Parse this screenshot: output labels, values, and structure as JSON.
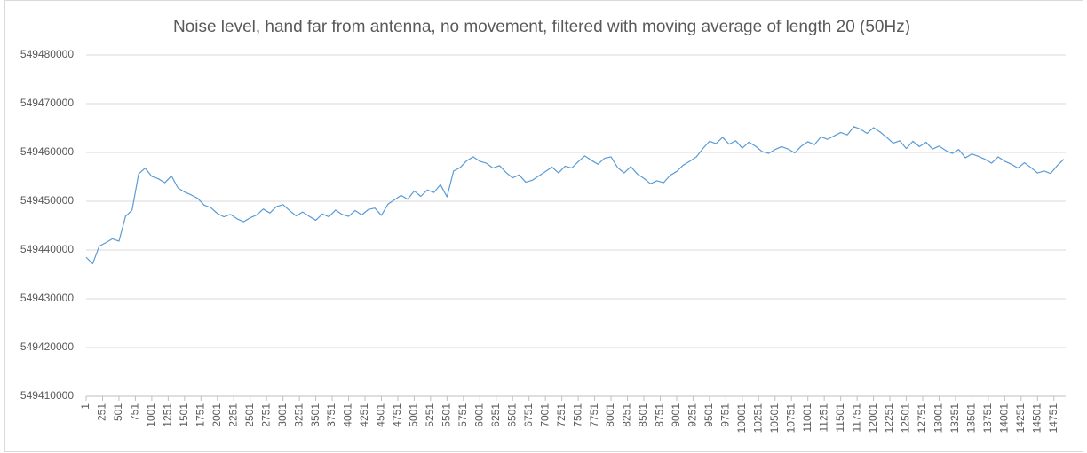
{
  "chart_data": {
    "type": "line",
    "title": "Noise level, hand far from antenna, no movement, filtered with moving average of length 20 (50Hz)",
    "x": [
      1,
      101,
      201,
      301,
      401,
      501,
      601,
      701,
      801,
      901,
      1001,
      1101,
      1201,
      1301,
      1401,
      1501,
      1601,
      1701,
      1801,
      1901,
      2001,
      2101,
      2201,
      2301,
      2401,
      2501,
      2601,
      2701,
      2801,
      2901,
      3001,
      3101,
      3201,
      3301,
      3401,
      3501,
      3601,
      3701,
      3801,
      3901,
      4001,
      4101,
      4201,
      4301,
      4401,
      4501,
      4601,
      4701,
      4801,
      4901,
      5001,
      5101,
      5201,
      5301,
      5401,
      5501,
      5601,
      5701,
      5801,
      5901,
      6001,
      6101,
      6201,
      6301,
      6401,
      6501,
      6601,
      6701,
      6801,
      6901,
      7001,
      7101,
      7201,
      7301,
      7401,
      7501,
      7601,
      7701,
      7801,
      7901,
      8001,
      8101,
      8201,
      8301,
      8401,
      8501,
      8601,
      8701,
      8801,
      8901,
      9001,
      9101,
      9201,
      9301,
      9401,
      9501,
      9601,
      9701,
      9801,
      9901,
      10001,
      10101,
      10201,
      10301,
      10401,
      10501,
      10601,
      10701,
      10801,
      10901,
      11001,
      11101,
      11201,
      11301,
      11401,
      11501,
      11601,
      11701,
      11801,
      11901,
      12001,
      12101,
      12201,
      12301,
      12401,
      12501,
      12601,
      12701,
      12801,
      12901,
      13001,
      13101,
      13201,
      13301,
      13401,
      13501,
      13601,
      13701,
      13801,
      13901,
      14001,
      14101,
      14201,
      14301,
      14401,
      14501,
      14601,
      14701,
      14801,
      14901
    ],
    "values": [
      549438500,
      549437200,
      549440800,
      549441500,
      549442300,
      549441800,
      549446900,
      549448200,
      549455600,
      549456800,
      549455100,
      549454600,
      549453800,
      549455200,
      549452700,
      549451900,
      549451300,
      549450600,
      549449200,
      549448700,
      549447500,
      549446800,
      549447300,
      549446400,
      549445800,
      549446600,
      549447200,
      549448400,
      549447600,
      549448900,
      549449300,
      549448100,
      549447000,
      549447800,
      549446900,
      549446100,
      549447400,
      549446800,
      549448200,
      549447300,
      549446900,
      549448100,
      549447200,
      549448300,
      549448600,
      549447100,
      549449400,
      549450300,
      549451200,
      549450400,
      549452100,
      549451000,
      549452300,
      549451800,
      549453400,
      549450900,
      549456200,
      549456900,
      549458300,
      549459100,
      549458200,
      549457800,
      549456800,
      549457300,
      549455900,
      549454800,
      549455400,
      549453900,
      549454300,
      549455200,
      549456100,
      549457000,
      549455800,
      549457200,
      549456800,
      549458100,
      549459300,
      549458400,
      549457600,
      549458800,
      549459100,
      549456900,
      549455800,
      549457100,
      549455600,
      549454700,
      549453600,
      549454200,
      549453800,
      549455300,
      549456100,
      549457400,
      549458200,
      549459100,
      549460800,
      549462300,
      549461800,
      549463100,
      549461700,
      549462400,
      549460900,
      549462100,
      549461300,
      549460200,
      549459800,
      549460600,
      549461200,
      549460700,
      549459900,
      549461300,
      549462200,
      549461600,
      549463200,
      549462700,
      549463400,
      549464100,
      549463600,
      549465300,
      549464800,
      549463900,
      549465100,
      549464200,
      549463100,
      549461900,
      549462400,
      549460800,
      549462300,
      549461200,
      549462100,
      549460700,
      549461300,
      549460400,
      549459800,
      549460600,
      549458900,
      549459700,
      549459200,
      549458600,
      549457800,
      549459100,
      549458200,
      549457600,
      549456800,
      549457900,
      549456900,
      549455800,
      549456200,
      549455700,
      549457300,
      549458600
    ],
    "color": "#5b9bd5",
    "xlim": [
      1,
      14930
    ],
    "xticks": [
      1,
      251,
      501,
      751,
      1001,
      1251,
      1501,
      1751,
      2001,
      2251,
      2501,
      2751,
      3001,
      3251,
      3501,
      3751,
      4001,
      4251,
      4501,
      4751,
      5001,
      5251,
      5501,
      5751,
      6001,
      6251,
      6501,
      6751,
      7001,
      7251,
      7501,
      7751,
      8001,
      8251,
      8501,
      8751,
      9001,
      9251,
      9501,
      9751,
      10001,
      10251,
      10501,
      10751,
      11001,
      11251,
      11501,
      11751,
      12001,
      12251,
      12501,
      12751,
      13001,
      13251,
      13501,
      13751,
      14001,
      14251,
      14501,
      14751
    ],
    "ylim": [
      549410000,
      549480000
    ],
    "yticks": [
      549410000,
      549420000,
      549430000,
      549440000,
      549450000,
      549460000,
      549470000,
      549480000
    ],
    "grid": true
  }
}
